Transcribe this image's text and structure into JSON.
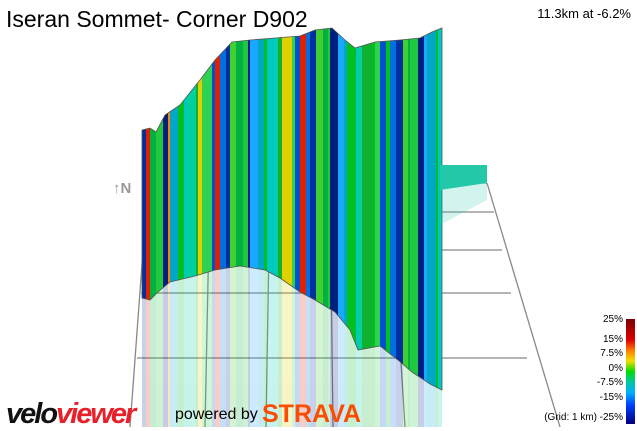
{
  "header": {
    "title": "Iseran Sommet- Corner D902",
    "stat": "11.3km at -6.2%"
  },
  "compass": {
    "label": "↑N"
  },
  "legend": {
    "labels": [
      "25%",
      "15%",
      "7.5%",
      "0%",
      "-7.5%",
      "-15%",
      "-25%"
    ],
    "grid_note": "(Grid: 1 km)",
    "colors": [
      "#7a0000",
      "#e00000",
      "#f0e000",
      "#00dd00",
      "#00c8a0",
      "#0040ff",
      "#000080"
    ]
  },
  "footer": {
    "logo_a": "velo",
    "logo_b": "viewer",
    "powered": "powered by",
    "strava": "STRAVA"
  }
}
